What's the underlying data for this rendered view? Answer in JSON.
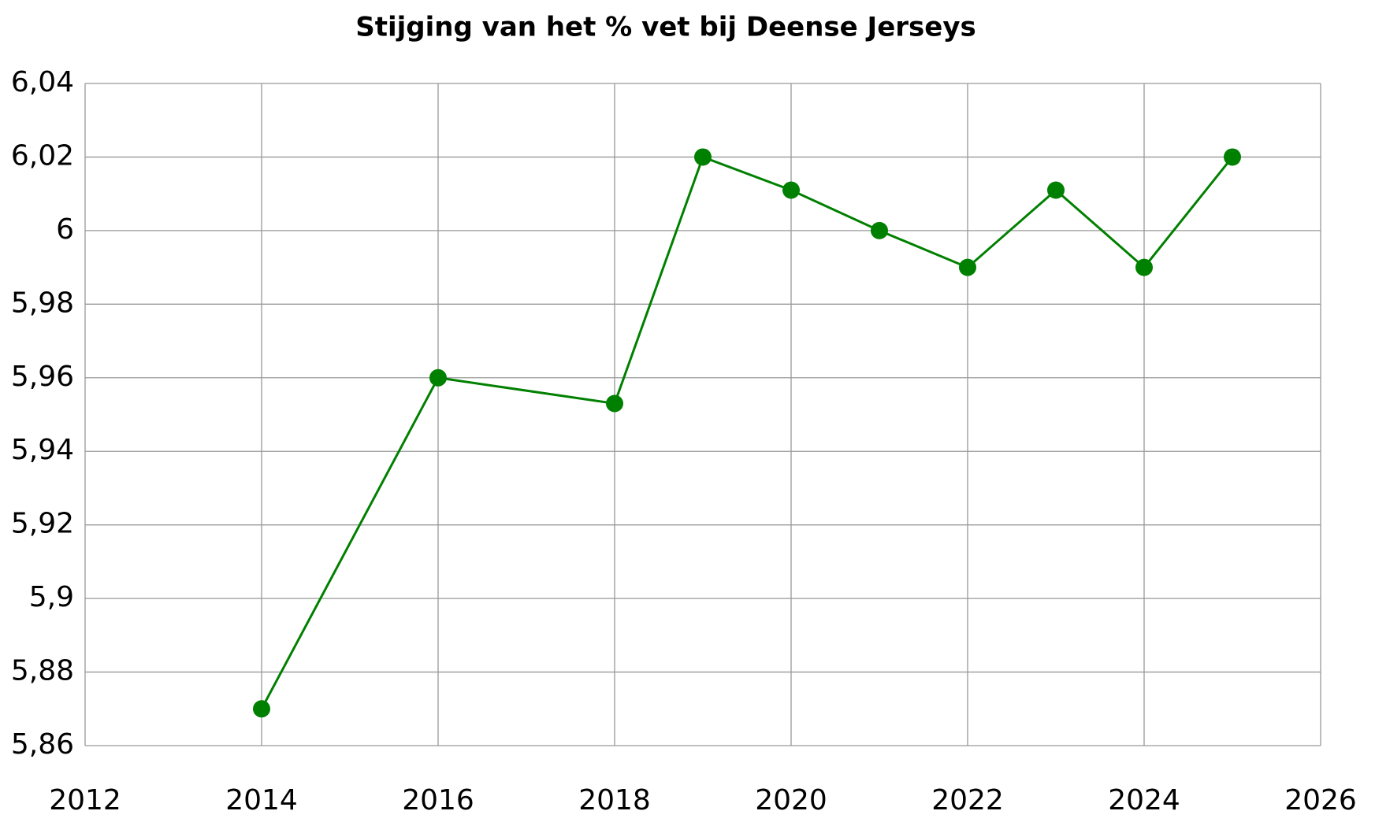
{
  "chart_data": {
    "type": "line",
    "title": "Stijging van het % vet bij Deense Jerseys",
    "x": [
      2014,
      2016,
      2018,
      2019,
      2020,
      2021,
      2022,
      2023,
      2024,
      2025
    ],
    "values": [
      5.87,
      5.96,
      5.953,
      6.02,
      6.011,
      6.0,
      5.99,
      6.011,
      5.99,
      6.02
    ],
    "color": "#008000",
    "marker": "circle",
    "xlim": [
      2012,
      2026
    ],
    "xticks": [
      2012,
      2014,
      2016,
      2018,
      2020,
      2022,
      2024,
      2026
    ],
    "ylim": [
      5.86,
      6.04
    ],
    "yticks": [
      {
        "value": 5.86,
        "label": "5,86"
      },
      {
        "value": 5.88,
        "label": "5,88"
      },
      {
        "value": 5.9,
        "label": "5,9"
      },
      {
        "value": 5.92,
        "label": "5,92"
      },
      {
        "value": 5.94,
        "label": "5,94"
      },
      {
        "value": 5.96,
        "label": "5,96"
      },
      {
        "value": 5.98,
        "label": "5,98"
      },
      6,
      {
        "value": 6.02,
        "label": "6,02"
      },
      {
        "value": 6.04,
        "label": "6,04"
      }
    ],
    "grid": true
  }
}
